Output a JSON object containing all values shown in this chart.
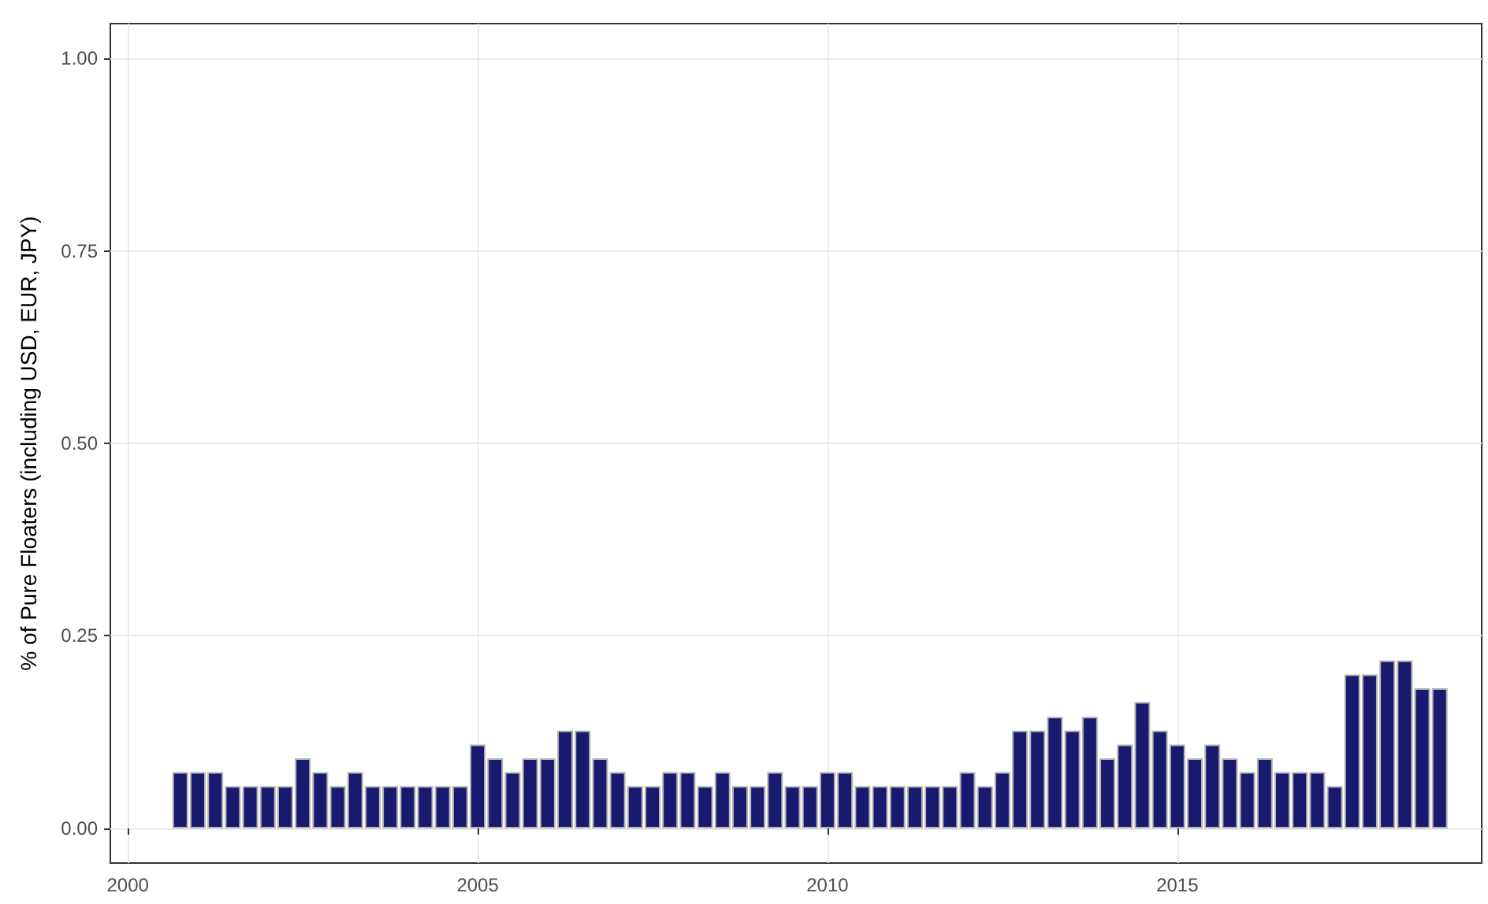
{
  "chart_data": {
    "type": "bar",
    "ylabel": "% of Pure Floaters (including USD, EUR, JPY)",
    "x": [
      2000.75,
      2001,
      2001.25,
      2001.5,
      2001.75,
      2002,
      2002.25,
      2002.5,
      2002.75,
      2003,
      2003.25,
      2003.5,
      2003.75,
      2004,
      2004.25,
      2004.5,
      2004.75,
      2005,
      2005.25,
      2005.5,
      2005.75,
      2006,
      2006.25,
      2006.5,
      2006.75,
      2007,
      2007.25,
      2007.5,
      2007.75,
      2008,
      2008.25,
      2008.5,
      2008.75,
      2009,
      2009.25,
      2009.5,
      2009.75,
      2010,
      2010.25,
      2010.5,
      2010.75,
      2011,
      2011.25,
      2011.5,
      2011.75,
      2012,
      2012.25,
      2012.5,
      2012.75,
      2013,
      2013.25,
      2013.5,
      2013.75,
      2014,
      2014.25,
      2014.5,
      2014.75,
      2015,
      2015.25,
      2015.5,
      2015.75,
      2016,
      2016.25,
      2016.5,
      2016.75,
      2017,
      2017.25,
      2017.5,
      2017.75,
      2018,
      2018.25,
      2018.5,
      2018.75
    ],
    "values": [
      0.073,
      0.073,
      0.073,
      0.055,
      0.055,
      0.055,
      0.055,
      0.091,
      0.073,
      0.055,
      0.073,
      0.055,
      0.055,
      0.055,
      0.055,
      0.055,
      0.055,
      0.109,
      0.091,
      0.073,
      0.091,
      0.091,
      0.127,
      0.127,
      0.091,
      0.073,
      0.055,
      0.055,
      0.073,
      0.073,
      0.055,
      0.073,
      0.055,
      0.055,
      0.073,
      0.055,
      0.055,
      0.073,
      0.073,
      0.055,
      0.055,
      0.055,
      0.055,
      0.055,
      0.055,
      0.073,
      0.055,
      0.073,
      0.127,
      0.127,
      0.145,
      0.127,
      0.145,
      0.091,
      0.109,
      0.164,
      0.127,
      0.109,
      0.091,
      0.109,
      0.091,
      0.073,
      0.091,
      0.073,
      0.073,
      0.073,
      0.055,
      0.2,
      0.2,
      0.218,
      0.218,
      0.182,
      0.182
    ],
    "color": "#191970",
    "xlim": [
      1999.75,
      2019.35
    ],
    "xticks": [
      2000,
      2005,
      2010,
      2015
    ],
    "ylim": [
      -0.045,
      1.045
    ],
    "yticks": [
      {
        "value": 0,
        "label": "0.00"
      },
      {
        "value": 0.25,
        "label": "0.25"
      },
      {
        "value": 0.5,
        "label": "0.50"
      },
      {
        "value": 0.75,
        "label": "0.75"
      },
      {
        "value": 1,
        "label": "1.00"
      }
    ],
    "grid": true
  }
}
